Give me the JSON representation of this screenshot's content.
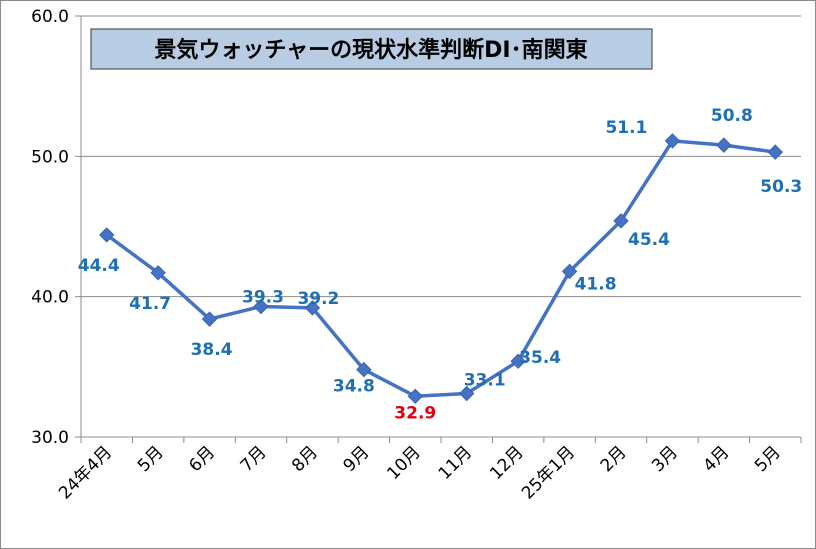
{
  "chart_data": {
    "type": "line",
    "title": "景気ウォッチャーの現状水準判断DI･南関東",
    "categories": [
      "24年4月",
      "5月",
      "6月",
      "7月",
      "8月",
      "9月",
      "10月",
      "11月",
      "12月",
      "25年1月",
      "2月",
      "3月",
      "4月",
      "5月"
    ],
    "series": [
      {
        "values": [
          44.4,
          41.7,
          38.4,
          39.3,
          39.2,
          34.8,
          32.9,
          33.1,
          35.4,
          41.8,
          45.4,
          51.1,
          50.8,
          50.3
        ],
        "labels": [
          "44.4",
          "41.7",
          "38.4",
          "39.3",
          "39.2",
          "34.8",
          "32.9",
          "33.1",
          "35.4",
          "41.8",
          "45.4",
          "51.1",
          "50.8",
          "50.3"
        ]
      }
    ],
    "ylim": [
      30,
      60
    ],
    "yticks": [
      "30.0",
      "40.0",
      "50.0",
      "60.0"
    ],
    "ytick_values": [
      30,
      40,
      50,
      60
    ],
    "grid": true,
    "colors": {
      "line": "#4472c4",
      "marker": "#4472c4",
      "label": "#1f6fb3",
      "highlight": "#e0000f"
    },
    "highlight_index": 6
  }
}
